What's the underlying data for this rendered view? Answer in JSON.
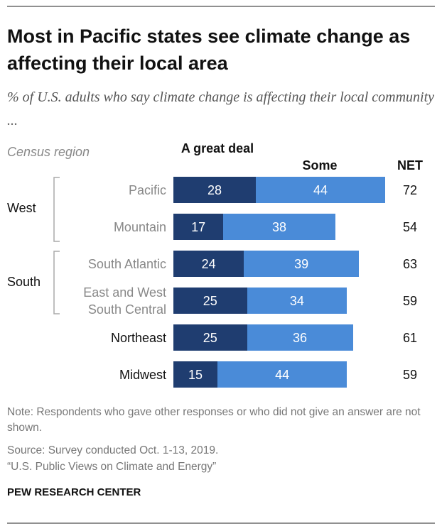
{
  "chart_data": {
    "type": "bar",
    "stacked": true,
    "orientation": "horizontal",
    "title": "Most in Pacific states see climate change as affecting their local area",
    "subtitle": "% of U.S. adults who say climate change is affecting their local community ...",
    "category_axis_label": "Census region",
    "categories": [
      "Pacific",
      "Mountain",
      "South Atlantic",
      "East and West South Central",
      "Northeast",
      "Midwest"
    ],
    "groups": [
      "West",
      "West",
      "South",
      "South",
      null,
      null
    ],
    "series": [
      {
        "name": "A great deal",
        "color": "#1f3d70",
        "values": [
          28,
          17,
          24,
          25,
          25,
          15
        ]
      },
      {
        "name": "Some",
        "color": "#4a8bd8",
        "values": [
          44,
          38,
          39,
          34,
          36,
          44
        ]
      }
    ],
    "net": {
      "name": "NET",
      "values": [
        72,
        54,
        63,
        59,
        61,
        59
      ]
    },
    "notes": [
      "Note: Respondents who gave other responses or who did not give an answer are not shown.",
      "Source: Survey conducted Oct. 1-13, 2019.",
      "“U.S. Public Views on Climate and Energy”"
    ],
    "footer": "PEW RESEARCH CENTER"
  }
}
